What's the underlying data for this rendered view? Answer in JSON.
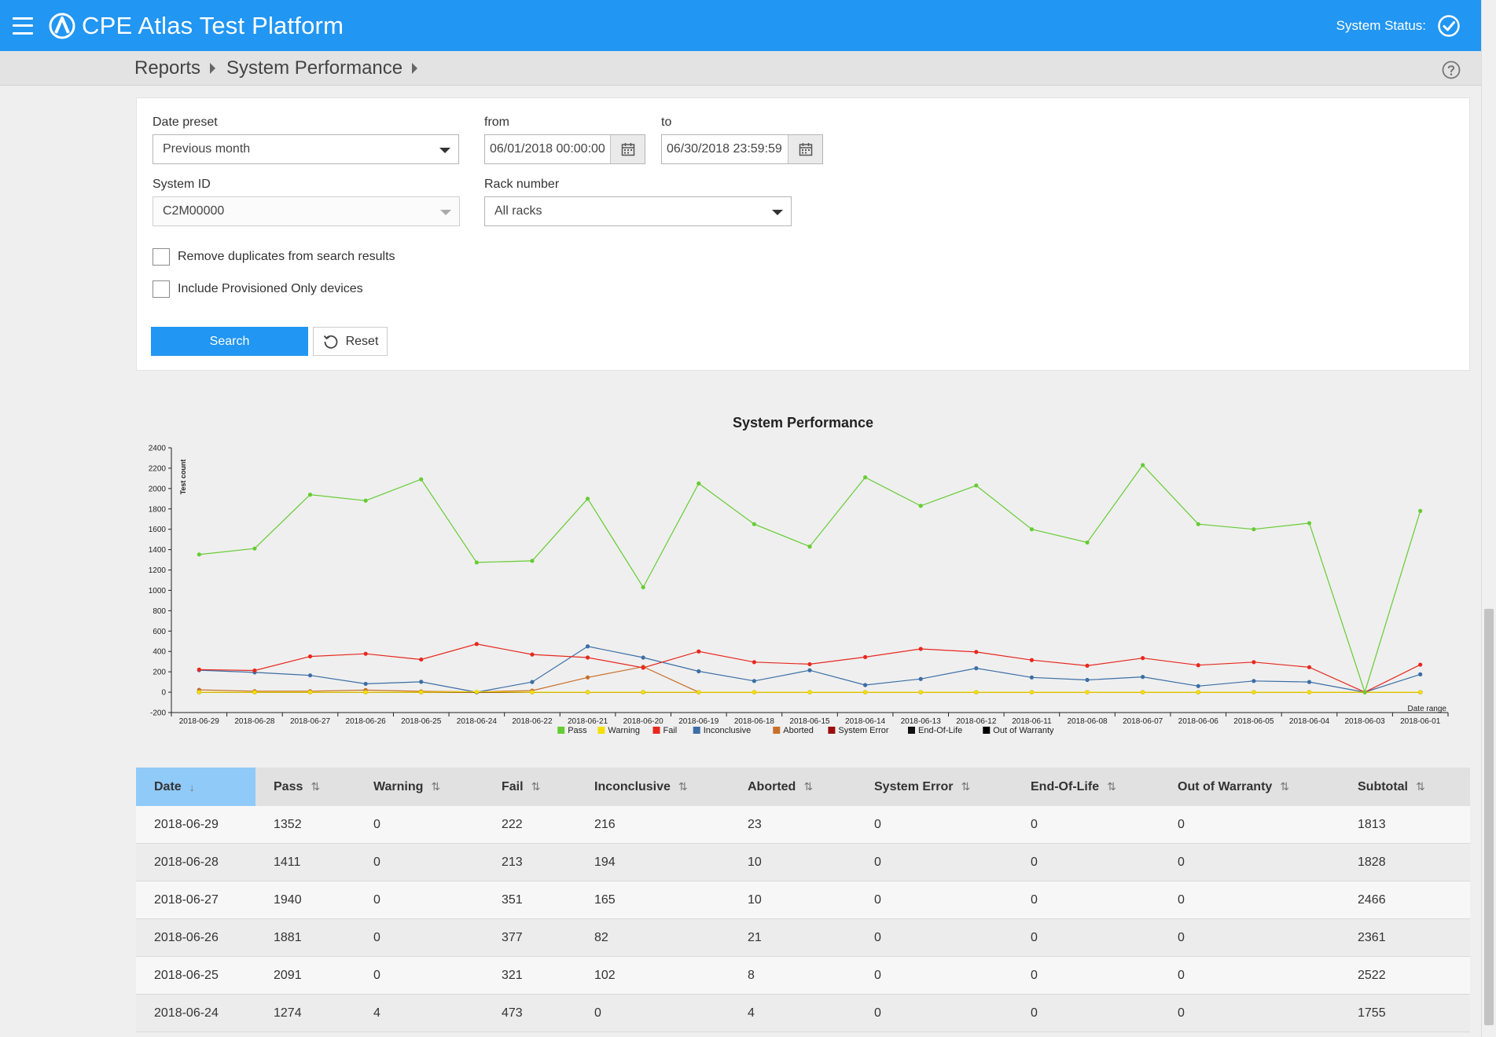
{
  "app": {
    "title": "CPE Atlas Test Platform",
    "system_status_label": "System Status:"
  },
  "breadcrumb": [
    "Reports",
    "System Performance"
  ],
  "filters": {
    "date_preset_label": "Date preset",
    "date_preset_value": "Previous month",
    "from_label": "from",
    "from_value": "06/01/2018 00:00:00",
    "to_label": "to",
    "to_value": "06/30/2018 23:59:59",
    "system_id_label": "System ID",
    "system_id_value": "C2M00000",
    "rack_label": "Rack number",
    "rack_value": "All racks",
    "remove_duplicates_label": "Remove duplicates from search results",
    "include_provisioned_label": "Include Provisioned Only devices",
    "search_label": "Search",
    "reset_label": "Reset"
  },
  "chart_data": {
    "type": "line",
    "title": "System Performance",
    "ylabel": "Test count",
    "xlabel": "Date range",
    "ylim": [
      -200,
      2400
    ],
    "yticks": [
      -200,
      0,
      200,
      400,
      600,
      800,
      1000,
      1200,
      1400,
      1600,
      1800,
      2000,
      2200,
      2400
    ],
    "categories": [
      "2018-06-29",
      "2018-06-28",
      "2018-06-27",
      "2018-06-26",
      "2018-06-25",
      "2018-06-24",
      "2018-06-22",
      "2018-06-21",
      "2018-06-20",
      "2018-06-19",
      "2018-06-18",
      "2018-06-15",
      "2018-06-14",
      "2018-06-13",
      "2018-06-12",
      "2018-06-11",
      "2018-06-08",
      "2018-06-07",
      "2018-06-06",
      "2018-06-05",
      "2018-06-04",
      "2018-06-03",
      "2018-06-01"
    ],
    "legend_position": "bottom",
    "series": [
      {
        "name": "Pass",
        "color": "#66cc33",
        "values": [
          1352,
          1411,
          1940,
          1881,
          2091,
          1274,
          1290,
          1900,
          1030,
          2050,
          1650,
          1430,
          2110,
          1830,
          2030,
          1600,
          1470,
          2230,
          1650,
          1600,
          1660,
          0,
          1780
        ]
      },
      {
        "name": "Warning",
        "color": "#f2e000",
        "values": [
          0,
          0,
          0,
          0,
          0,
          4,
          0,
          0,
          0,
          0,
          0,
          0,
          0,
          0,
          0,
          0,
          0,
          0,
          0,
          0,
          0,
          0,
          0
        ]
      },
      {
        "name": "Fail",
        "color": "#e8281e",
        "values": [
          222,
          213,
          351,
          377,
          321,
          473,
          370,
          340,
          240,
          400,
          295,
          275,
          345,
          425,
          395,
          315,
          260,
          335,
          265,
          295,
          245,
          0,
          270
        ]
      },
      {
        "name": "Inconclusive",
        "color": "#3b6ea5",
        "values": [
          216,
          194,
          165,
          82,
          102,
          0,
          100,
          450,
          340,
          205,
          110,
          215,
          70,
          130,
          235,
          145,
          120,
          150,
          60,
          110,
          100,
          0,
          175
        ]
      },
      {
        "name": "Aborted",
        "color": "#c8702a",
        "values": [
          23,
          10,
          10,
          21,
          8,
          4,
          15,
          145,
          250,
          0,
          0,
          0,
          0,
          0,
          0,
          0,
          0,
          0,
          0,
          0,
          0,
          0,
          0
        ]
      },
      {
        "name": "System Error",
        "color": "#9b0d0d",
        "values": [
          0,
          0,
          0,
          0,
          0,
          0,
          0,
          0,
          0,
          0,
          0,
          0,
          0,
          0,
          0,
          0,
          0,
          0,
          0,
          0,
          0,
          0,
          0
        ]
      },
      {
        "name": "End-Of-Life",
        "color": "#111111",
        "values": [
          0,
          0,
          0,
          0,
          0,
          0,
          0,
          0,
          0,
          0,
          0,
          0,
          0,
          0,
          0,
          0,
          0,
          0,
          0,
          0,
          0,
          0,
          0
        ]
      },
      {
        "name": "Out of Warranty",
        "color": "#000000",
        "values": [
          0,
          0,
          0,
          0,
          0,
          0,
          0,
          0,
          0,
          0,
          0,
          0,
          0,
          0,
          0,
          0,
          0,
          0,
          0,
          0,
          0,
          0,
          0
        ]
      }
    ]
  },
  "table": {
    "columns": [
      "Date",
      "Pass",
      "Warning",
      "Fail",
      "Inconclusive",
      "Aborted",
      "System Error",
      "End-Of-Life",
      "Out of Warranty",
      "Subtotal"
    ],
    "rows": [
      [
        "2018-06-29",
        "1352",
        "0",
        "222",
        "216",
        "23",
        "0",
        "0",
        "0",
        "1813"
      ],
      [
        "2018-06-28",
        "1411",
        "0",
        "213",
        "194",
        "10",
        "0",
        "0",
        "0",
        "1828"
      ],
      [
        "2018-06-27",
        "1940",
        "0",
        "351",
        "165",
        "10",
        "0",
        "0",
        "0",
        "2466"
      ],
      [
        "2018-06-26",
        "1881",
        "0",
        "377",
        "82",
        "21",
        "0",
        "0",
        "0",
        "2361"
      ],
      [
        "2018-06-25",
        "2091",
        "0",
        "321",
        "102",
        "8",
        "0",
        "0",
        "0",
        "2522"
      ],
      [
        "2018-06-24",
        "1274",
        "4",
        "473",
        "0",
        "4",
        "0",
        "0",
        "0",
        "1755"
      ]
    ]
  },
  "colors": {
    "primary": "#2196f3",
    "active_sort_header": "#90caf9"
  }
}
